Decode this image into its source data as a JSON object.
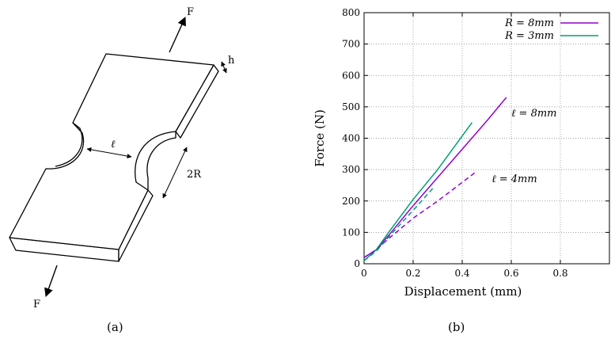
{
  "figure": {
    "left": {
      "caption": "(a)",
      "force_top": "F",
      "force_bottom": "F",
      "thickness": "h",
      "ligament": "ℓ",
      "radius": "2R"
    },
    "right": {
      "caption": "(b)"
    }
  },
  "chart_data": {
    "type": "line",
    "xlabel": "Displacement (mm)",
    "ylabel": "Force (N)",
    "xlim": [
      0,
      1.0
    ],
    "ylim": [
      0,
      800
    ],
    "xticks": [
      "0",
      "0.2",
      "0.4",
      "0.6",
      "0.8"
    ],
    "yticks": [
      "0",
      "100",
      "200",
      "300",
      "400",
      "500",
      "600",
      "700",
      "800"
    ],
    "grid": true,
    "legend_position": "top-right",
    "legend": [
      {
        "label": "R = 8mm",
        "color": "#9400d3"
      },
      {
        "label": "R = 3mm",
        "color": "#009e73"
      }
    ],
    "annotations": [
      "ℓ = 8mm",
      "ℓ = 4mm"
    ],
    "series": [
      {
        "name": "R = 8mm",
        "group": "ℓ = 8mm",
        "color": "#9400d3",
        "dash": "solid",
        "x": [
          0,
          0.05,
          0.1,
          0.2,
          0.3,
          0.4,
          0.5,
          0.58
        ],
        "y": [
          20,
          45,
          90,
          185,
          275,
          365,
          455,
          530
        ]
      },
      {
        "name": "R = 3mm",
        "group": "ℓ = 8mm",
        "color": "#009e73",
        "dash": "solid",
        "x": [
          0,
          0.05,
          0.1,
          0.2,
          0.3,
          0.44
        ],
        "y": [
          10,
          45,
          100,
          205,
          300,
          450
        ]
      },
      {
        "name": "R = 8mm",
        "group": "ℓ = 4mm",
        "color": "#9400d3",
        "dash": "dashed",
        "x": [
          0,
          0.05,
          0.1,
          0.2,
          0.3,
          0.46
        ],
        "y": [
          20,
          45,
          80,
          145,
          200,
          295
        ]
      },
      {
        "name": "R = 3mm",
        "group": "ℓ = 4mm",
        "color": "#009e73",
        "dash": "dashed",
        "x": [
          0,
          0.05,
          0.1,
          0.2,
          0.28
        ],
        "y": [
          10,
          40,
          85,
          170,
          240
        ]
      }
    ]
  }
}
